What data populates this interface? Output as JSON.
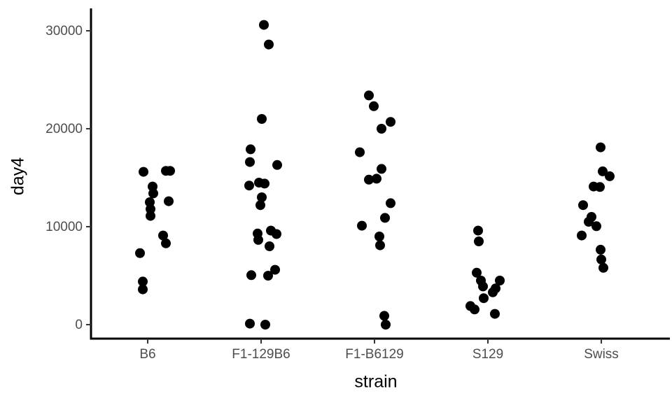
{
  "chart_data": {
    "type": "scatter",
    "variant": "jittered-strip-plot",
    "title": "",
    "xlabel": "strain",
    "ylabel": "day4",
    "categories": [
      "B6",
      "F1-129B6",
      "F1-B6129",
      "S129",
      "Swiss"
    ],
    "y_ticks": [
      0,
      10000,
      20000,
      30000
    ],
    "y_tick_labels": [
      "0",
      "10000",
      "20000",
      "30000"
    ],
    "ylim": [
      0,
      30600
    ],
    "grid": "off",
    "legend": "none",
    "point_color": "#000000",
    "axis_color": "#000000",
    "tick_color": "#333333",
    "tick_label_color": "#4d4d4d",
    "series": [
      {
        "name": "B6",
        "values": [
          15700,
          15700,
          15600,
          14100,
          13400,
          12600,
          12500,
          11800,
          11100,
          9100,
          8300,
          7300,
          4400,
          3600
        ],
        "jitter_offsets": [
          26,
          32,
          -6,
          7,
          8,
          30,
          3,
          4,
          4,
          22,
          26,
          -11,
          -7,
          -7
        ]
      },
      {
        "name": "F1-129B6",
        "values": [
          30600,
          28600,
          21000,
          17900,
          16600,
          16300,
          14500,
          14400,
          14200,
          13000,
          12200,
          9600,
          9300,
          9250,
          8650,
          8000,
          5600,
          5050,
          5000,
          100,
          0
        ],
        "jitter_offsets": [
          4,
          11,
          1,
          -15,
          -16,
          23,
          -3,
          5,
          -17,
          1,
          -1,
          14,
          -5,
          22,
          -4,
          12,
          20,
          -14,
          10,
          -16,
          6
        ]
      },
      {
        "name": "F1-B6129",
        "values": [
          23400,
          22300,
          20700,
          20000,
          17600,
          15900,
          14900,
          14800,
          12400,
          10900,
          10100,
          9000,
          8100,
          900,
          0
        ],
        "jitter_offsets": [
          -8,
          -1,
          23,
          10,
          -21,
          10,
          3,
          -8,
          23,
          15,
          -18,
          7,
          8,
          14,
          16
        ]
      },
      {
        "name": "S129",
        "values": [
          9600,
          8500,
          5300,
          4500,
          4500,
          3900,
          3700,
          3300,
          2700,
          1900,
          1550,
          1100
        ],
        "jitter_offsets": [
          -14,
          -13,
          -16,
          -10,
          17,
          -7,
          11,
          7,
          -6,
          -25,
          -19,
          10
        ]
      },
      {
        "name": "Swiss",
        "values": [
          18100,
          15650,
          15150,
          14100,
          14050,
          12200,
          11000,
          10500,
          10050,
          9100,
          7650,
          6650,
          5800
        ],
        "jitter_offsets": [
          -1,
          2,
          12,
          -11,
          -2,
          -26,
          -14,
          -18,
          -7,
          -28,
          -1,
          0,
          3
        ]
      }
    ]
  }
}
